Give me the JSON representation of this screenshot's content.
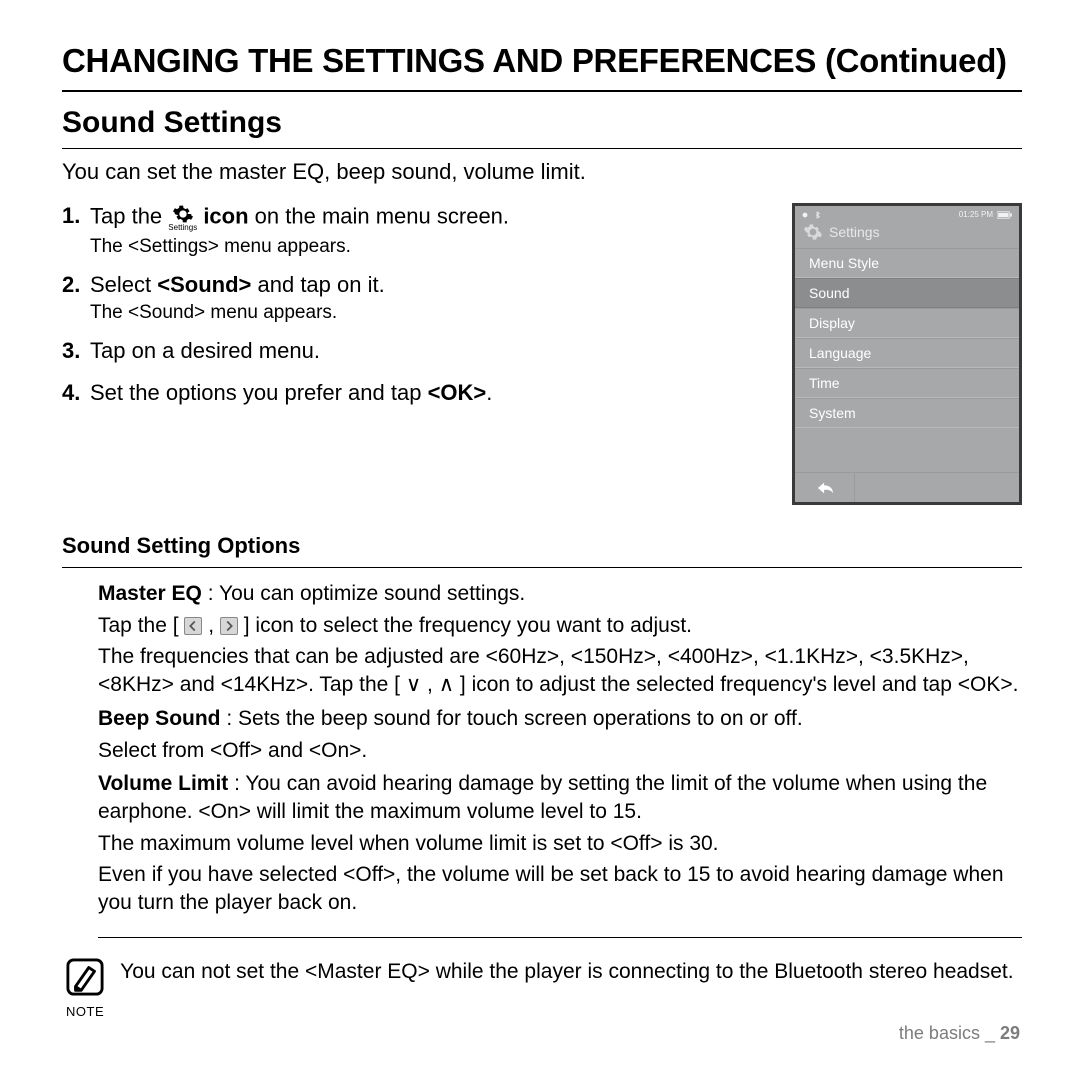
{
  "main_title": "CHANGING THE SETTINGS AND PREFERENCES (Continued)",
  "section_title": "Sound Settings",
  "intro": "You can set the master EQ, beep sound, volume limit.",
  "gear_caption": "Settings",
  "steps": [
    {
      "num": "1.",
      "pre": "Tap the ",
      "mid_bold": "icon",
      "post": " on the main menu screen.",
      "sub": "The <Settings> menu appears.",
      "with_icon": true
    },
    {
      "num": "2.",
      "pre": "Select ",
      "mid_bold": "<Sound>",
      "post": " and tap on it.",
      "sub": "The <Sound> menu appears.",
      "with_icon": false
    },
    {
      "num": "3.",
      "pre": "Tap on a desired menu.",
      "mid_bold": "",
      "post": "",
      "sub": "",
      "with_icon": false
    },
    {
      "num": "4.",
      "pre": "Set the options you prefer and tap ",
      "mid_bold": "<OK>",
      "post": ".",
      "sub": "",
      "with_icon": false
    }
  ],
  "device": {
    "status_time": "01:25 PM",
    "header": "Settings",
    "items": [
      "Menu Style",
      "Sound",
      "Display",
      "Language",
      "Time",
      "System"
    ],
    "selected_index": 1
  },
  "sub_title": "Sound Setting Options",
  "options": {
    "master_eq": {
      "label": "Master EQ",
      "line1_after": " : You can optimize sound settings.",
      "line2_pre": "Tap the [ ",
      "line2_mid": " , ",
      "line2_post": " ] icon to select the frequency you want to adjust.",
      "line3": "The frequencies that can be adjusted are <60Hz>, <150Hz>, <400Hz>, <1.1KHz>, <3.5KHz>, <8KHz> and <14KHz>. Tap the [ ∨ , ∧ ] icon to adjust the selected frequency's level and tap <OK>."
    },
    "beep": {
      "label": "Beep Sound",
      "line1_after": " : Sets the beep sound for touch screen operations to on or off.",
      "line2": "Select from <Off> and <On>."
    },
    "volume": {
      "label": "Volume Limit",
      "line1_after": " : You can avoid hearing damage by setting the limit of the volume when using the earphone. <On> will limit the maximum volume level to 15.",
      "line2": "The maximum volume level when volume limit is set to <Off> is 30.",
      "line3": "Even if you have selected <Off>, the volume will be set back to 15 to avoid hearing damage when you turn the player back on."
    }
  },
  "note": {
    "label": "NOTE",
    "text": "You can not set the <Master EQ> while the player is connecting to the Bluetooth stereo headset."
  },
  "footer": {
    "section": "the basics _ ",
    "page": "29"
  },
  "colors": {
    "text": "#000000",
    "device_bg": "#a7a8a9",
    "device_border": "#3a3a3a",
    "device_selected": "#8c8d8e",
    "device_text": "#ffffff",
    "footer_text": "#7c7c7c"
  }
}
